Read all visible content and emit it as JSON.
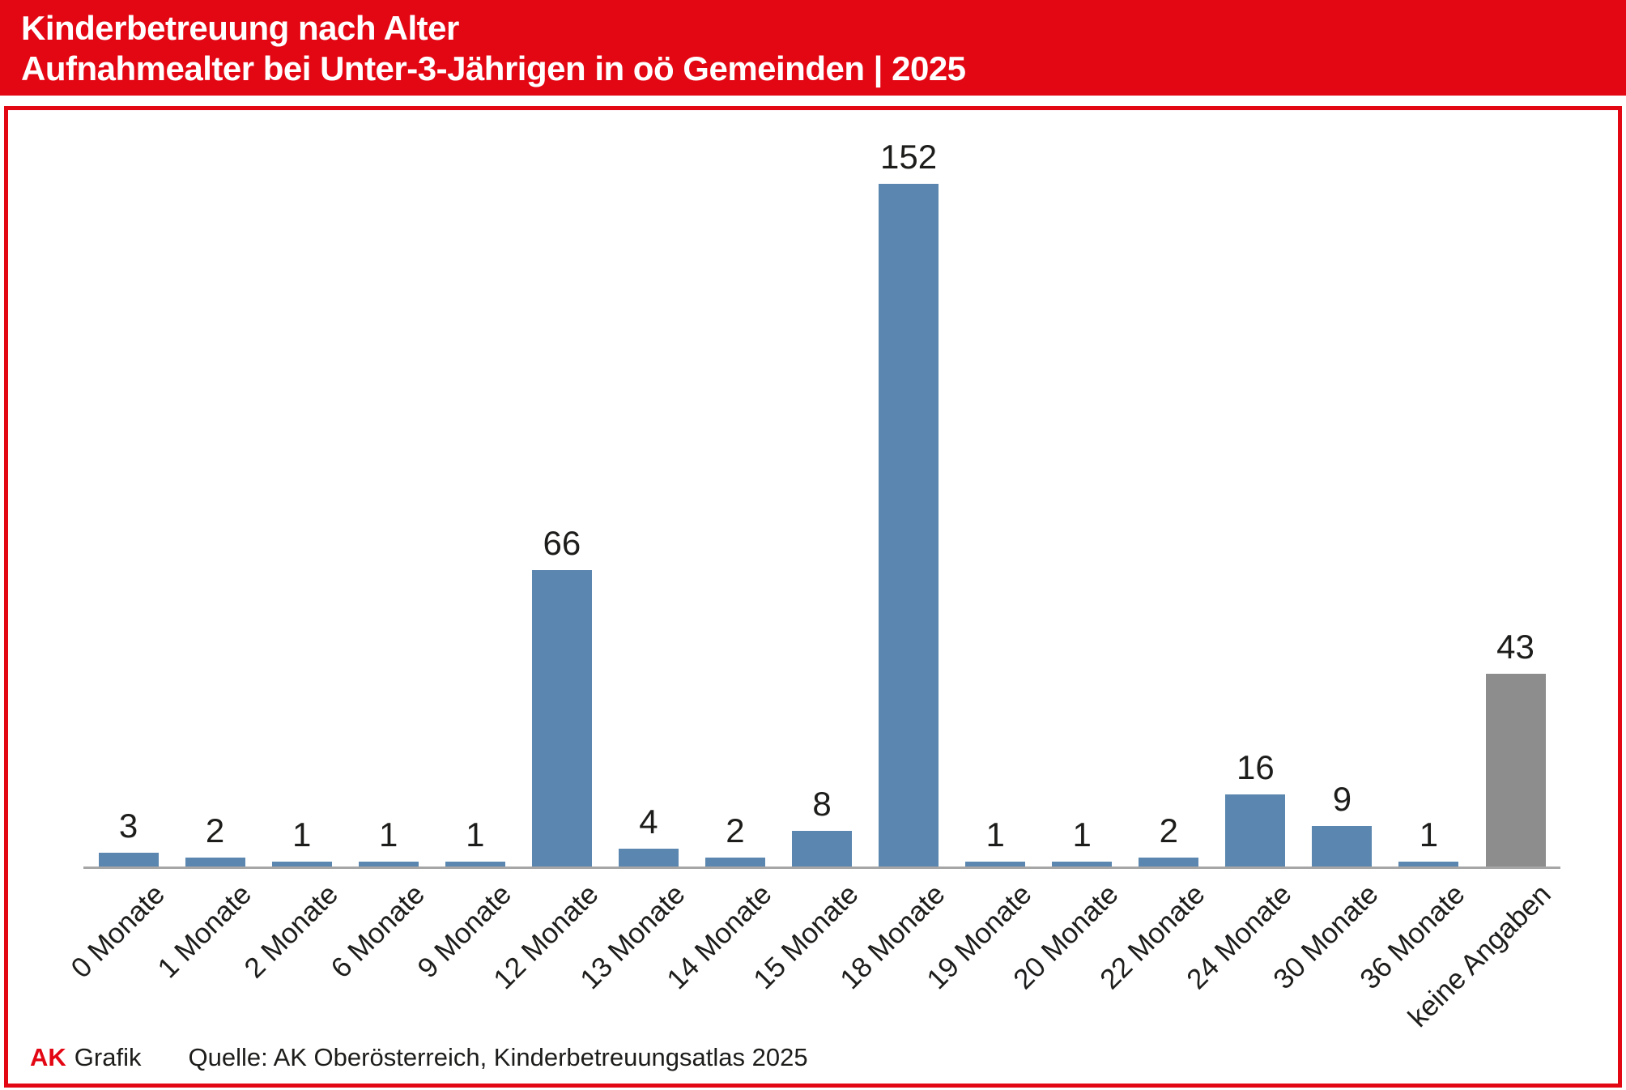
{
  "header": {
    "title_line1": "Kinderbetreuung nach Alter",
    "title_line2": "Aufnahmealter bei Unter-3-Jährigen in oö Gemeinden | 2025"
  },
  "footer": {
    "brand": "AK",
    "brand_label": "Grafik",
    "source": "Quelle: AK Oberösterreich, Kinderbetreuungsatlas 2025"
  },
  "colors": {
    "brand_red": "#e30613",
    "bar_blue": "#5b86af",
    "bar_gray": "#8d8d8d",
    "axis_gray": "#a6a6a6",
    "text_black": "#1d1d1b"
  },
  "chart_data": {
    "type": "bar",
    "title": "Kinderbetreuung nach Alter – Aufnahmealter bei Unter-3-Jährigen in oö Gemeinden | 2025",
    "categories": [
      "0 Monate",
      "1 Monate",
      "2 Monate",
      "6 Monate",
      "9 Monate",
      "12 Monate",
      "13 Monate",
      "14 Monate",
      "15 Monate",
      "18 Monate",
      "19 Monate",
      "20 Monate",
      "22 Monate",
      "24 Monate",
      "30 Monate",
      "36 Monate",
      "keine Angaben"
    ],
    "values": [
      3,
      2,
      1,
      1,
      1,
      66,
      4,
      2,
      8,
      152,
      1,
      1,
      2,
      16,
      9,
      1,
      43
    ],
    "highlight_category": "keine Angaben",
    "xlabel": "",
    "ylabel": "",
    "ylim": [
      0,
      152
    ],
    "grid": false,
    "y_axis_visible": false,
    "legend": false,
    "value_labels": true,
    "x_label_rotation_deg": 45
  }
}
